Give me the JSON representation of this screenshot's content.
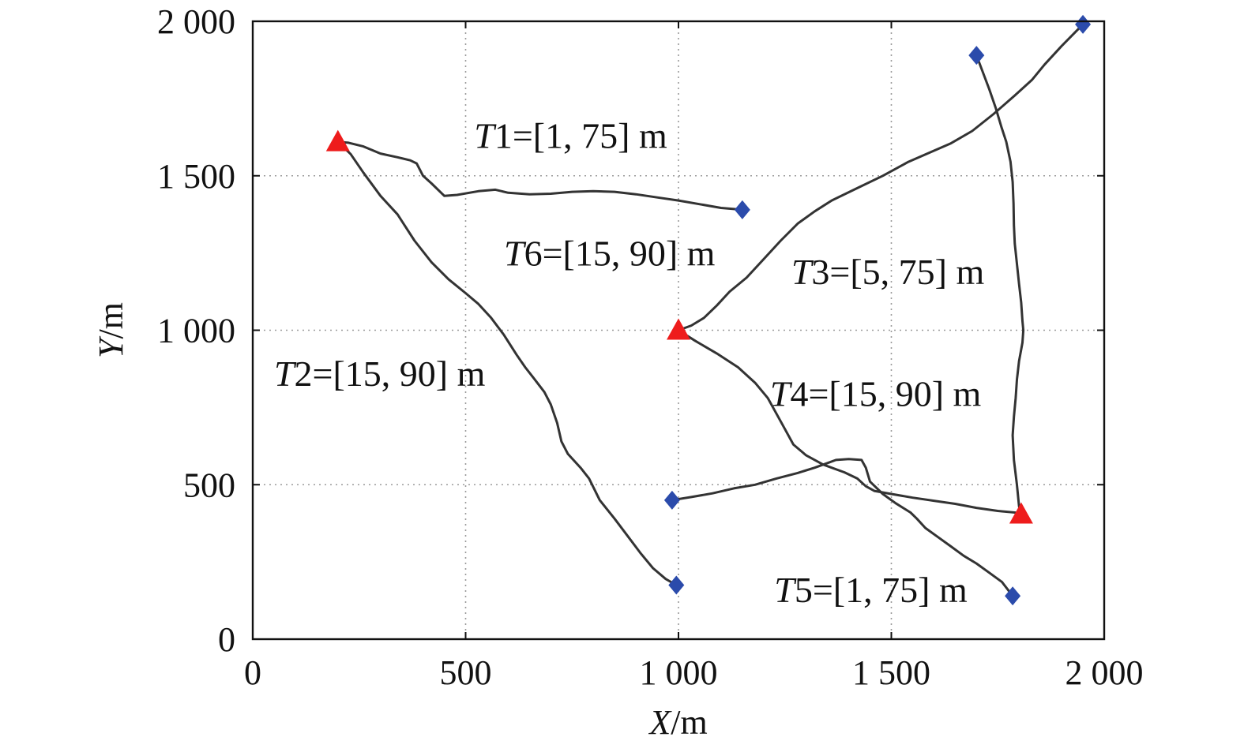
{
  "chart_data": {
    "type": "line",
    "title": "",
    "xlabel": {
      "var": "X",
      "unit": "/m"
    },
    "ylabel": {
      "var": "Y",
      "unit": "/m"
    },
    "xlim": [
      0,
      2000
    ],
    "ylim": [
      0,
      2000
    ],
    "grid": true,
    "x_ticks": [
      {
        "value": 0,
        "label": "0"
      },
      {
        "value": 500,
        "label": "500"
      },
      {
        "value": 1000,
        "label": "1 000"
      },
      {
        "value": 1500,
        "label": "1 500"
      },
      {
        "value": 2000,
        "label": "2 000"
      }
    ],
    "y_ticks": [
      {
        "value": 0,
        "label": "0"
      },
      {
        "value": 500,
        "label": "500"
      },
      {
        "value": 1000,
        "label": "1 000"
      },
      {
        "value": 1500,
        "label": "1 500"
      },
      {
        "value": 2000,
        "label": "2 000"
      }
    ],
    "line_color": "#333333",
    "start_marker": {
      "shape": "triangle",
      "color": "#ee1c1c"
    },
    "end_marker": {
      "shape": "diamond",
      "color": "#2b4bab"
    },
    "series": [
      {
        "label_var": "T1",
        "label_value": "=[1, 75] m",
        "label_at": [
          520,
          1590
        ],
        "points": [
          [
            200,
            1610
          ],
          [
            225,
            1607
          ],
          [
            260,
            1595
          ],
          [
            300,
            1572
          ],
          [
            340,
            1560
          ],
          [
            370,
            1550
          ],
          [
            385,
            1540
          ],
          [
            400,
            1500
          ],
          [
            420,
            1475
          ],
          [
            450,
            1435
          ],
          [
            480,
            1438
          ],
          [
            530,
            1450
          ],
          [
            570,
            1455
          ],
          [
            600,
            1445
          ],
          [
            650,
            1440
          ],
          [
            700,
            1442
          ],
          [
            750,
            1448
          ],
          [
            800,
            1450
          ],
          [
            850,
            1448
          ],
          [
            900,
            1440
          ],
          [
            950,
            1430
          ],
          [
            1000,
            1420
          ],
          [
            1050,
            1408
          ],
          [
            1100,
            1396
          ],
          [
            1150,
            1390
          ]
        ]
      },
      {
        "label_var": "T2",
        "label_value": "=[15, 90] m",
        "label_at": [
          50,
          820
        ],
        "points": [
          [
            200,
            1610
          ],
          [
            230,
            1570
          ],
          [
            260,
            1510
          ],
          [
            300,
            1435
          ],
          [
            340,
            1375
          ],
          [
            380,
            1290
          ],
          [
            420,
            1220
          ],
          [
            460,
            1165
          ],
          [
            500,
            1120
          ],
          [
            530,
            1085
          ],
          [
            560,
            1040
          ],
          [
            590,
            985
          ],
          [
            620,
            920
          ],
          [
            640,
            880
          ],
          [
            660,
            845
          ],
          [
            685,
            800
          ],
          [
            700,
            760
          ],
          [
            715,
            700
          ],
          [
            725,
            640
          ],
          [
            740,
            600
          ],
          [
            770,
            555
          ],
          [
            790,
            520
          ],
          [
            815,
            450
          ],
          [
            850,
            390
          ],
          [
            880,
            335
          ],
          [
            910,
            280
          ],
          [
            940,
            230
          ],
          [
            970,
            195
          ],
          [
            995,
            175
          ]
        ]
      },
      {
        "label_var": "T3",
        "label_value": "=[5, 75] m",
        "label_at": [
          1265,
          1150
        ],
        "points": [
          [
            1700,
            1890
          ],
          [
            1715,
            1835
          ],
          [
            1730,
            1780
          ],
          [
            1745,
            1720
          ],
          [
            1758,
            1660
          ],
          [
            1770,
            1610
          ],
          [
            1780,
            1545
          ],
          [
            1785,
            1480
          ],
          [
            1787,
            1410
          ],
          [
            1788,
            1340
          ],
          [
            1790,
            1280
          ],
          [
            1795,
            1215
          ],
          [
            1800,
            1150
          ],
          [
            1805,
            1090
          ],
          [
            1808,
            1030
          ],
          [
            1810,
            1000
          ],
          [
            1808,
            960
          ],
          [
            1800,
            900
          ],
          [
            1795,
            840
          ],
          [
            1792,
            780
          ],
          [
            1788,
            720
          ],
          [
            1785,
            660
          ],
          [
            1788,
            580
          ],
          [
            1795,
            500
          ],
          [
            1800,
            430
          ],
          [
            1805,
            405
          ]
        ]
      },
      {
        "label_var": "T4",
        "label_value": "=[15, 90] m",
        "label_at": [
          1215,
          755
        ],
        "points": [
          [
            1000,
            1000
          ],
          [
            1040,
            965
          ],
          [
            1090,
            925
          ],
          [
            1140,
            880
          ],
          [
            1180,
            830
          ],
          [
            1210,
            780
          ],
          [
            1230,
            730
          ],
          [
            1250,
            680
          ],
          [
            1270,
            630
          ],
          [
            1300,
            595
          ],
          [
            1340,
            565
          ],
          [
            1390,
            540
          ],
          [
            1420,
            520
          ],
          [
            1440,
            495
          ],
          [
            1460,
            480
          ],
          [
            1500,
            470
          ],
          [
            1550,
            458
          ],
          [
            1600,
            448
          ],
          [
            1650,
            438
          ],
          [
            1700,
            425
          ],
          [
            1750,
            415
          ],
          [
            1790,
            410
          ],
          [
            1805,
            405
          ]
        ]
      },
      {
        "label_var": "T5",
        "label_value": "=[1, 75] m",
        "label_at": [
          1225,
          120
        ],
        "points": [
          [
            985,
            450
          ],
          [
            1030,
            460
          ],
          [
            1080,
            472
          ],
          [
            1130,
            488
          ],
          [
            1180,
            500
          ],
          [
            1230,
            520
          ],
          [
            1280,
            538
          ],
          [
            1320,
            555
          ],
          [
            1350,
            570
          ],
          [
            1370,
            580
          ],
          [
            1400,
            583
          ],
          [
            1430,
            580
          ],
          [
            1440,
            555
          ],
          [
            1450,
            510
          ],
          [
            1480,
            470
          ],
          [
            1510,
            440
          ],
          [
            1545,
            410
          ],
          [
            1560,
            390
          ],
          [
            1580,
            360
          ],
          [
            1610,
            330
          ],
          [
            1640,
            300
          ],
          [
            1670,
            270
          ],
          [
            1700,
            245
          ],
          [
            1730,
            215
          ],
          [
            1760,
            185
          ],
          [
            1785,
            140
          ]
        ]
      },
      {
        "label_var": "T6",
        "label_value": "=[15, 90] m",
        "label_at": [
          590,
          1210
        ],
        "points": [
          [
            1000,
            1000
          ],
          [
            1030,
            1015
          ],
          [
            1060,
            1040
          ],
          [
            1090,
            1080
          ],
          [
            1120,
            1125
          ],
          [
            1160,
            1170
          ],
          [
            1200,
            1230
          ],
          [
            1240,
            1290
          ],
          [
            1280,
            1345
          ],
          [
            1320,
            1385
          ],
          [
            1360,
            1420
          ],
          [
            1420,
            1460
          ],
          [
            1480,
            1500
          ],
          [
            1540,
            1545
          ],
          [
            1590,
            1575
          ],
          [
            1640,
            1605
          ],
          [
            1690,
            1645
          ],
          [
            1740,
            1700
          ],
          [
            1790,
            1760
          ],
          [
            1830,
            1810
          ],
          [
            1860,
            1860
          ],
          [
            1900,
            1920
          ],
          [
            1950,
            1990
          ]
        ]
      }
    ]
  }
}
